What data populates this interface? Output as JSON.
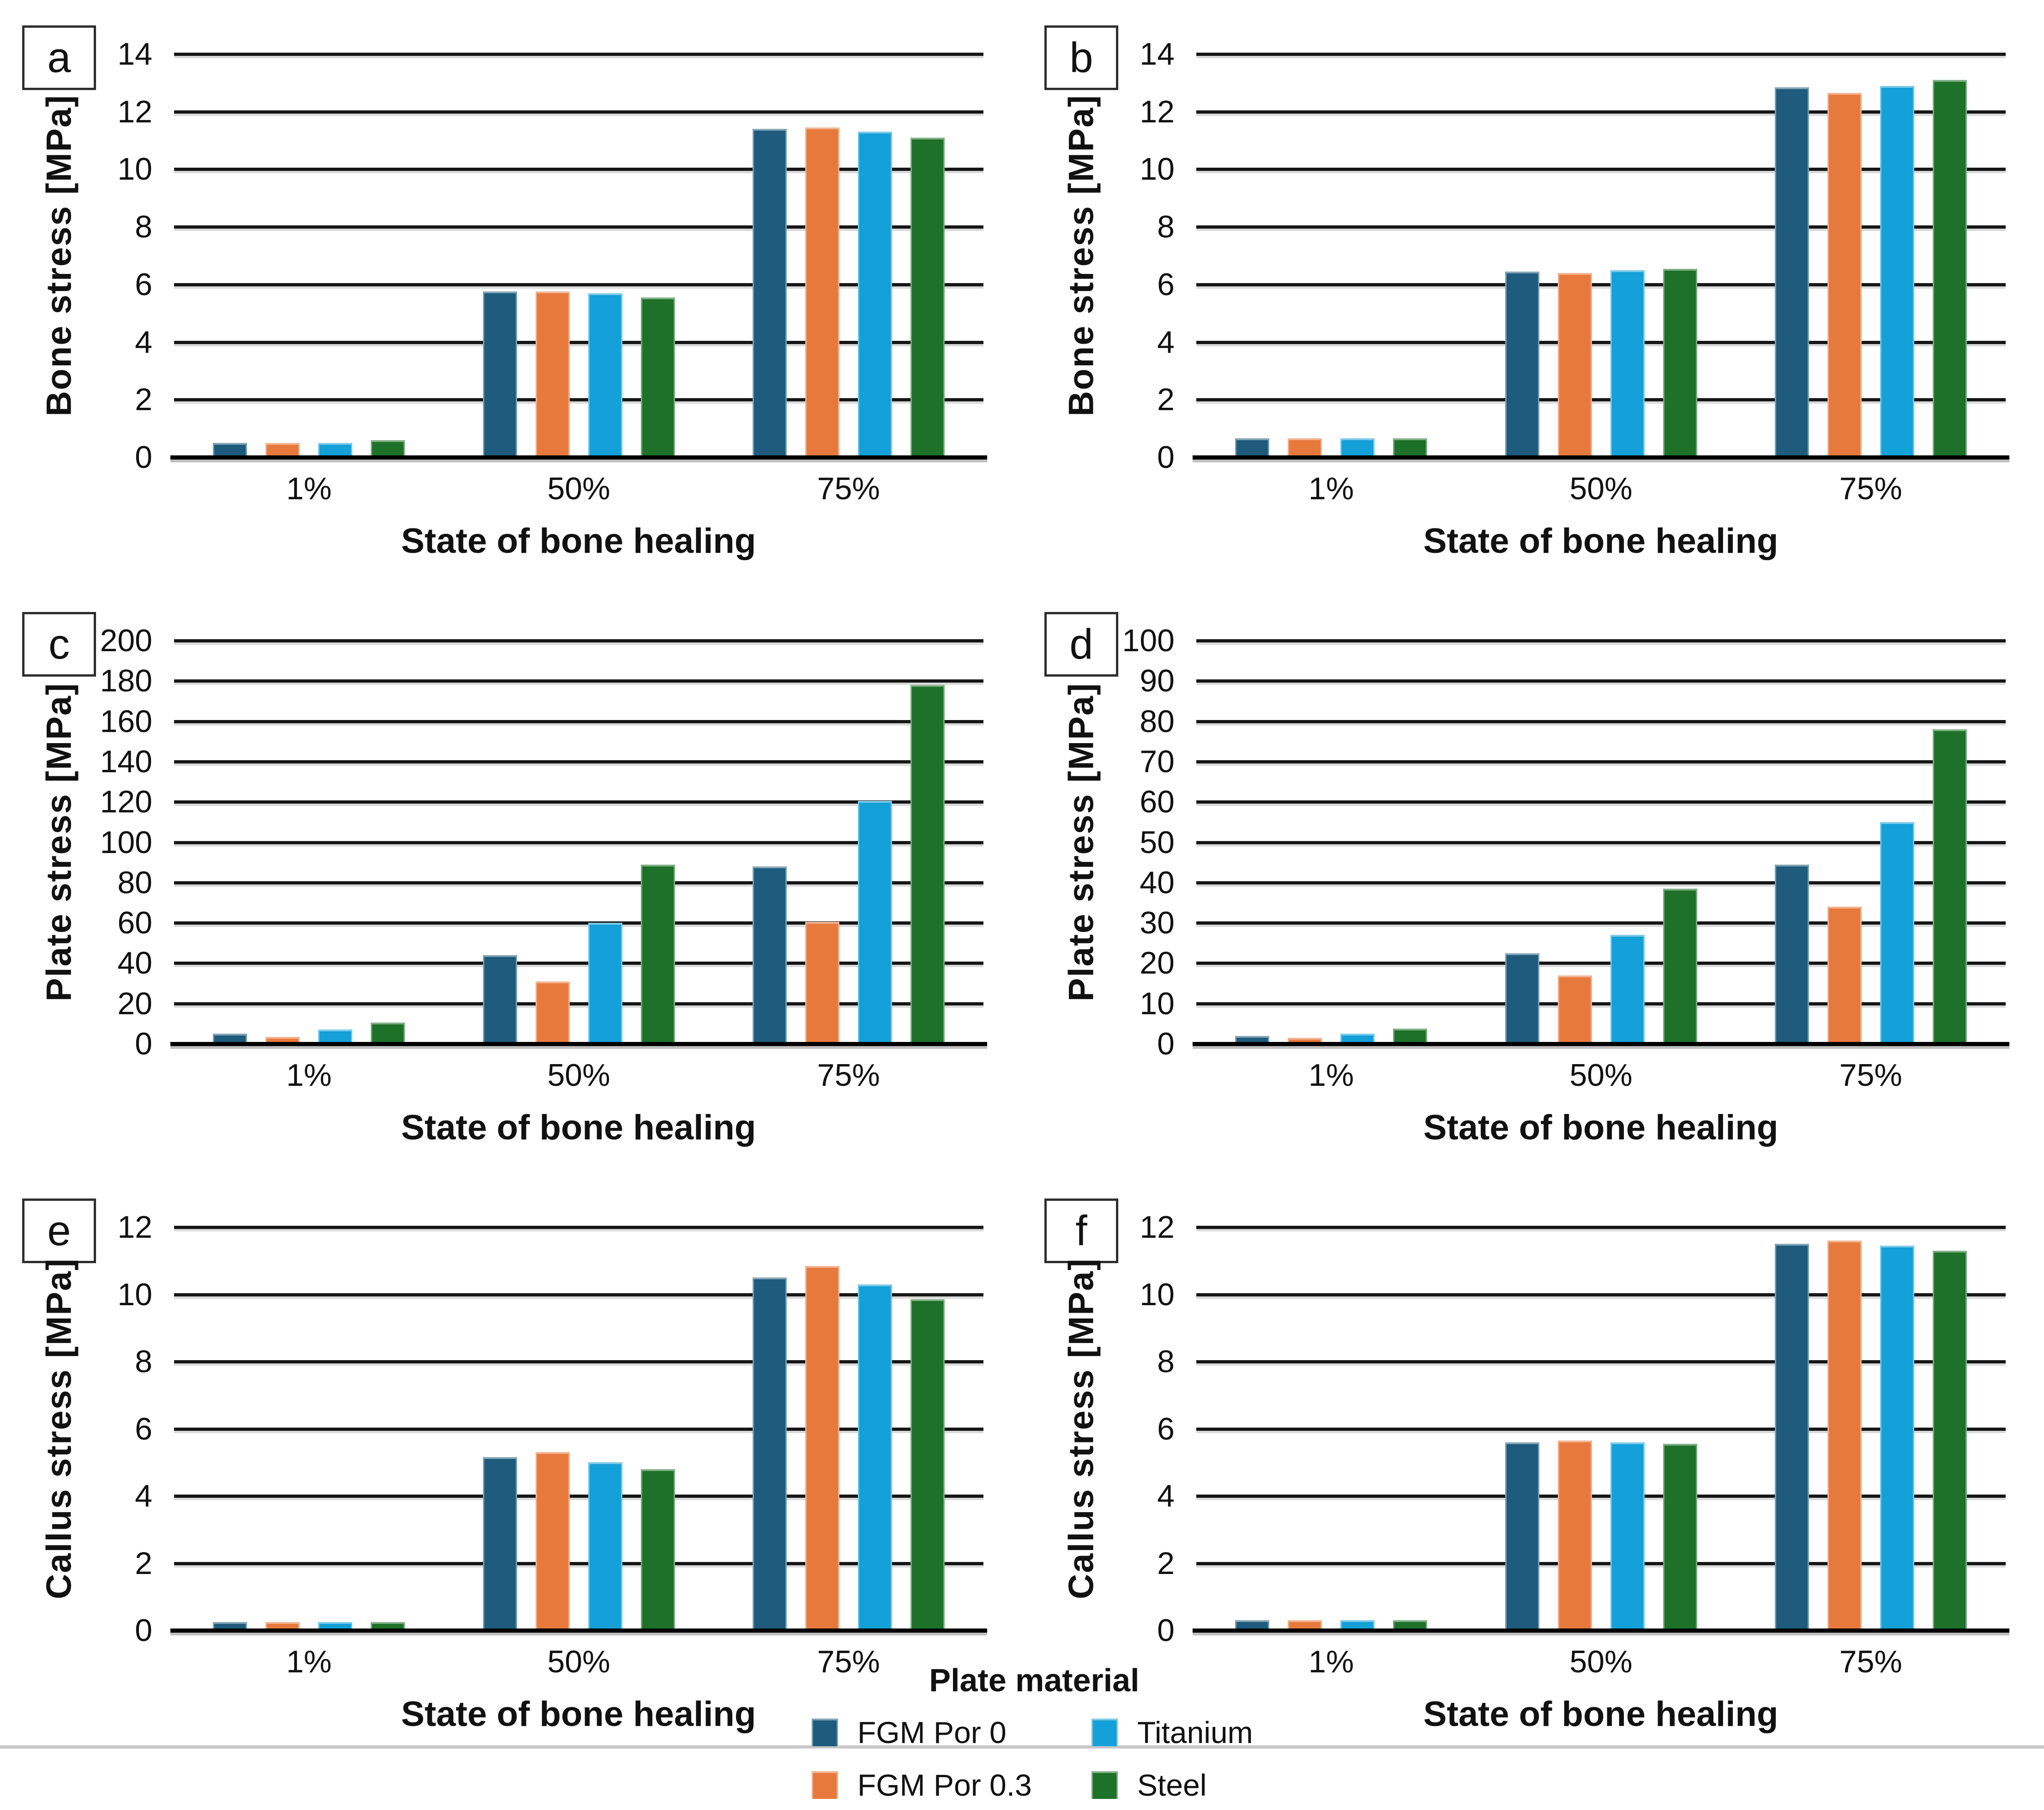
{
  "page": {
    "background": "#ffffff"
  },
  "legend": {
    "title": "Plate material",
    "items": [
      {
        "label": "FGM Por 0",
        "color": "#1E5B7C"
      },
      {
        "label": "Titanium",
        "color": "#14A0D8"
      },
      {
        "label": "FGM Por 0.3",
        "color": "#E8793C"
      },
      {
        "label": "Steel",
        "color": "#1E7128"
      }
    ]
  },
  "chart_data": [
    {
      "panel": "a",
      "type": "bar",
      "title": "",
      "ylabel": "Bone stress [MPa]",
      "xlabel": "State of bone healing",
      "categories": [
        "1%",
        "50%",
        "75%"
      ],
      "ylim": [
        0,
        14
      ],
      "ytick_step": 2,
      "grid": true,
      "legend_position": "bottom-shared",
      "series": [
        {
          "name": "FGM Por 0",
          "color": "#1E5B7C",
          "values": [
            0.5,
            5.75,
            11.4
          ]
        },
        {
          "name": "FGM Por 0.3",
          "color": "#E8793C",
          "values": [
            0.5,
            5.75,
            11.45
          ]
        },
        {
          "name": "Titanium",
          "color": "#14A0D8",
          "values": [
            0.5,
            5.7,
            11.3
          ]
        },
        {
          "name": "Steel",
          "color": "#1E7128",
          "values": [
            0.6,
            5.55,
            11.1
          ]
        }
      ]
    },
    {
      "panel": "b",
      "type": "bar",
      "title": "",
      "ylabel": "Bone stress [MPa]",
      "xlabel": "State of bone healing",
      "categories": [
        "1%",
        "50%",
        "75%"
      ],
      "ylim": [
        0,
        14
      ],
      "ytick_step": 2,
      "grid": true,
      "legend_position": "bottom-shared",
      "series": [
        {
          "name": "FGM Por 0",
          "color": "#1E5B7C",
          "values": [
            0.65,
            6.45,
            12.85
          ]
        },
        {
          "name": "FGM Por 0.3",
          "color": "#E8793C",
          "values": [
            0.65,
            6.4,
            12.65
          ]
        },
        {
          "name": "Titanium",
          "color": "#14A0D8",
          "values": [
            0.65,
            6.5,
            12.9
          ]
        },
        {
          "name": "Steel",
          "color": "#1E7128",
          "values": [
            0.65,
            6.55,
            13.1
          ]
        }
      ]
    },
    {
      "panel": "c",
      "type": "bar",
      "title": "",
      "ylabel": "Plate stress [MPa]",
      "xlabel": "State of bone healing",
      "categories": [
        "1%",
        "50%",
        "75%"
      ],
      "ylim": [
        0,
        200
      ],
      "ytick_step": 20,
      "grid": true,
      "legend_position": "bottom-shared",
      "series": [
        {
          "name": "FGM Por 0",
          "color": "#1E5B7C",
          "values": [
            5,
            44,
            88
          ]
        },
        {
          "name": "FGM Por 0.3",
          "color": "#E8793C",
          "values": [
            3.5,
            31,
            60.5
          ]
        },
        {
          "name": "Titanium",
          "color": "#14A0D8",
          "values": [
            7,
            60,
            120.5
          ]
        },
        {
          "name": "Steel",
          "color": "#1E7128",
          "values": [
            10.5,
            89,
            178
          ]
        }
      ]
    },
    {
      "panel": "d",
      "type": "bar",
      "title": "",
      "ylabel": "Plate stress [MPa]",
      "xlabel": "State of bone healing",
      "categories": [
        "1%",
        "50%",
        "75%"
      ],
      "ylim": [
        0,
        100
      ],
      "ytick_step": 10,
      "grid": true,
      "legend_position": "bottom-shared",
      "series": [
        {
          "name": "FGM Por 0",
          "color": "#1E5B7C",
          "values": [
            2,
            22.5,
            44.5
          ]
        },
        {
          "name": "FGM Por 0.3",
          "color": "#E8793C",
          "values": [
            1.5,
            17,
            34
          ]
        },
        {
          "name": "Titanium",
          "color": "#14A0D8",
          "values": [
            2.5,
            27,
            55
          ]
        },
        {
          "name": "Steel",
          "color": "#1E7128",
          "values": [
            3.8,
            38.5,
            78
          ]
        }
      ]
    },
    {
      "panel": "e",
      "type": "bar",
      "title": "",
      "ylabel": "Callus stress [MPa]",
      "xlabel": "State of bone healing",
      "categories": [
        "1%",
        "50%",
        "75%"
      ],
      "ylim": [
        0,
        12
      ],
      "ytick_step": 2,
      "grid": true,
      "legend_position": "bottom-shared",
      "series": [
        {
          "name": "FGM Por 0",
          "color": "#1E5B7C",
          "values": [
            0.25,
            5.15,
            10.5
          ]
        },
        {
          "name": "FGM Por 0.3",
          "color": "#E8793C",
          "values": [
            0.25,
            5.3,
            10.85
          ]
        },
        {
          "name": "Titanium",
          "color": "#14A0D8",
          "values": [
            0.25,
            5.0,
            10.3
          ]
        },
        {
          "name": "Steel",
          "color": "#1E7128",
          "values": [
            0.25,
            4.8,
            9.85
          ]
        }
      ]
    },
    {
      "panel": "f",
      "type": "bar",
      "title": "",
      "ylabel": "Callus stress [MPa]",
      "xlabel": "State of bone healing",
      "categories": [
        "1%",
        "50%",
        "75%"
      ],
      "ylim": [
        0,
        12
      ],
      "ytick_step": 2,
      "grid": true,
      "legend_position": "bottom-shared",
      "series": [
        {
          "name": "FGM Por 0",
          "color": "#1E5B7C",
          "values": [
            0.3,
            5.6,
            11.5
          ]
        },
        {
          "name": "FGM Por 0.3",
          "color": "#E8793C",
          "values": [
            0.3,
            5.65,
            11.6
          ]
        },
        {
          "name": "Titanium",
          "color": "#14A0D8",
          "values": [
            0.3,
            5.6,
            11.45
          ]
        },
        {
          "name": "Steel",
          "color": "#1E7128",
          "values": [
            0.3,
            5.55,
            11.3
          ]
        }
      ]
    }
  ]
}
